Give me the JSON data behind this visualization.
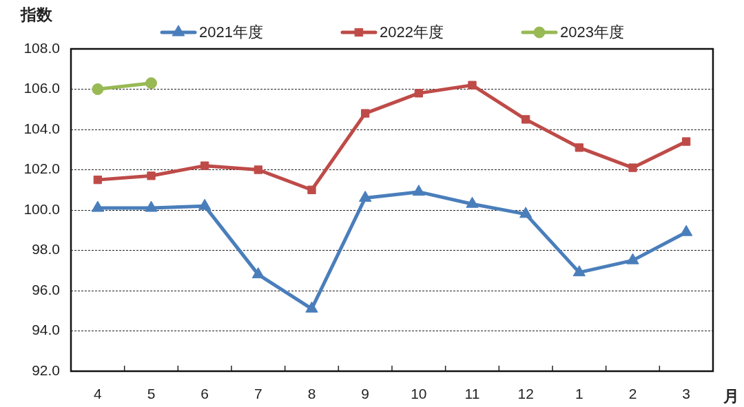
{
  "chart_data": {
    "type": "line",
    "ylabel": "指数",
    "xlabel": "月",
    "categories": [
      "4",
      "5",
      "6",
      "7",
      "8",
      "9",
      "10",
      "11",
      "12",
      "1",
      "2",
      "3"
    ],
    "series": [
      {
        "name": "2021年度",
        "color": "#4a7ebb",
        "marker": "triangle",
        "values": [
          100.1,
          100.1,
          100.2,
          96.8,
          95.1,
          100.6,
          100.9,
          100.3,
          99.8,
          96.9,
          97.5,
          98.9
        ]
      },
      {
        "name": "2022年度",
        "color": "#be4b48",
        "marker": "square",
        "values": [
          101.5,
          101.7,
          102.2,
          102.0,
          101.0,
          104.8,
          105.8,
          106.2,
          104.5,
          103.1,
          102.1,
          103.4
        ]
      },
      {
        "name": "2023年度",
        "color": "#98b954",
        "marker": "circle",
        "values": [
          106.0,
          106.3,
          null,
          null,
          null,
          null,
          null,
          null,
          null,
          null,
          null,
          null
        ]
      }
    ],
    "ylim": [
      92,
      108
    ],
    "yticks": [
      {
        "value": 92,
        "label": "92.0"
      },
      {
        "value": 94,
        "label": "94.0"
      },
      {
        "value": 96,
        "label": "96.0"
      },
      {
        "value": 98,
        "label": "98.0"
      },
      {
        "value": 100,
        "label": "100.0"
      },
      {
        "value": 102,
        "label": "102.0"
      },
      {
        "value": 104,
        "label": "104.0"
      },
      {
        "value": 106,
        "label": "106.0"
      },
      {
        "value": 108,
        "label": "108.0"
      }
    ],
    "grid": "y",
    "legend": "top",
    "line_style": "solid"
  }
}
